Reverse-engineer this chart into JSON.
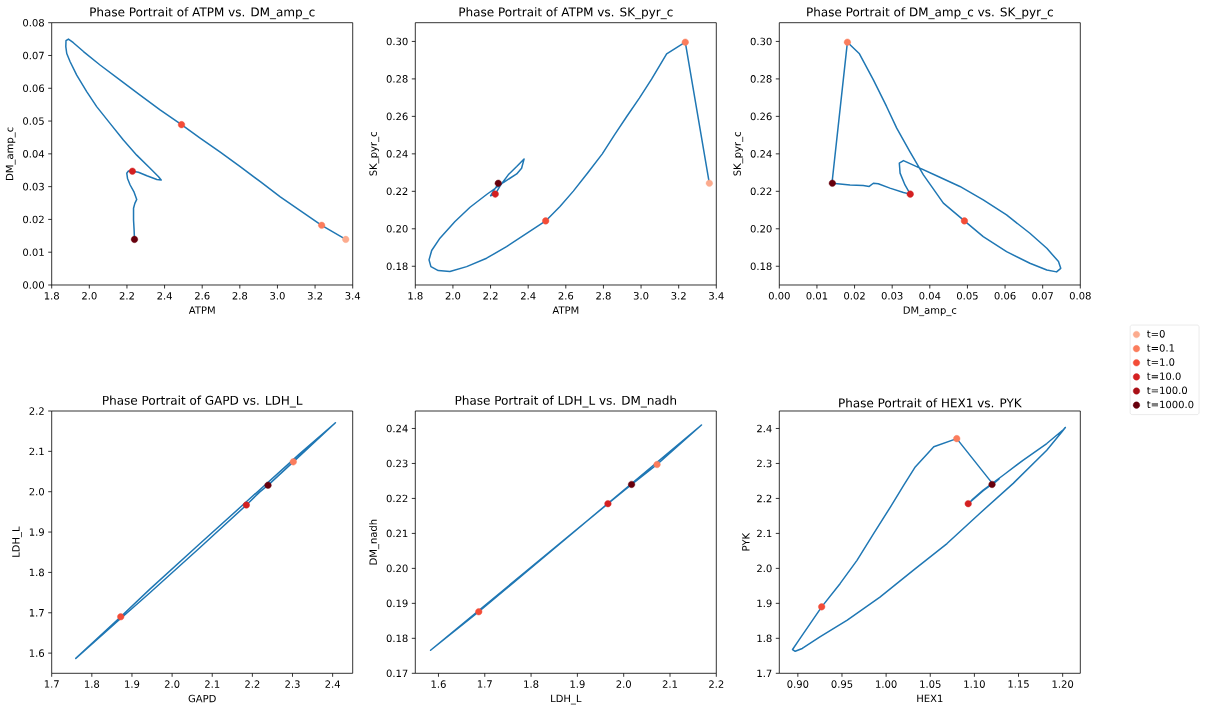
{
  "chart_data": [
    {
      "type": "line",
      "title": "Phase Portrait of ATPM vs. DM_amp_c",
      "xlabel": "ATPM",
      "ylabel": "DM_amp_c",
      "xlim": [
        1.8,
        3.4
      ],
      "ylim": [
        0,
        0.08
      ],
      "xticks": [
        1.8,
        {
          "value": 2,
          "label": "2.0"
        },
        2.2,
        2.4,
        2.6,
        2.8,
        {
          "value": 3,
          "label": "3.0"
        },
        3.2,
        3.4
      ],
      "yticks": [
        {
          "value": 0,
          "label": "0.00"
        },
        0.01,
        0.02,
        0.03,
        0.04,
        0.05,
        0.06,
        0.07,
        0.08
      ],
      "series": [
        {
          "color": "#1f77b4",
          "x": [
            3.363,
            3.235,
            3.121,
            3.015,
            2.909,
            2.802,
            2.696,
            2.589,
            2.49,
            2.376,
            2.27,
            2.164,
            2.057,
            1.969,
            1.915,
            1.889,
            1.876,
            1.875,
            1.88,
            1.898,
            1.933,
            1.986,
            2.039,
            2.11,
            2.181,
            2.252,
            2.323,
            2.368,
            2.382,
            2.359,
            2.306,
            2.261,
            2.229,
            2.208,
            2.199,
            2.203,
            2.217,
            2.238,
            2.252,
            2.242,
            2.235,
            2.235,
            2.238,
            2.24
          ],
          "values": [
            0.0139,
            0.0182,
            0.0227,
            0.0269,
            0.0315,
            0.0361,
            0.0405,
            0.0448,
            0.0489,
            0.0534,
            0.0579,
            0.0625,
            0.0671,
            0.0712,
            0.0739,
            0.075,
            0.0745,
            0.0727,
            0.0706,
            0.0681,
            0.064,
            0.059,
            0.0544,
            0.0493,
            0.0442,
            0.0396,
            0.0356,
            0.033,
            0.032,
            0.0322,
            0.0333,
            0.0344,
            0.0347,
            0.0348,
            0.0341,
            0.0325,
            0.0305,
            0.0283,
            0.0261,
            0.0249,
            0.0234,
            0.0198,
            0.0168,
            0.0139
          ]
        },
        {
          "type": "scatter",
          "marker": "circle",
          "color": "#fcab8e",
          "x": [
            3.363
          ],
          "values": [
            0.0139
          ]
        },
        {
          "type": "scatter",
          "marker": "circle",
          "color": "#fb7d5d",
          "x": [
            3.235
          ],
          "values": [
            0.0182
          ]
        },
        {
          "type": "scatter",
          "marker": "circle",
          "color": "#f34c37",
          "x": [
            2.49
          ],
          "values": [
            0.0489
          ]
        },
        {
          "type": "scatter",
          "marker": "circle",
          "color": "#d42021",
          "x": [
            2.229
          ],
          "values": [
            0.0347
          ]
        },
        {
          "type": "scatter",
          "marker": "circle",
          "color": "#67000d",
          "x": [
            2.24
          ],
          "values": [
            0.0139
          ]
        }
      ]
    },
    {
      "type": "line",
      "title": "Phase Portrait of ATPM vs. SK_pyr_c",
      "xlabel": "ATPM",
      "ylabel": "SK_pyr_c",
      "xlim": [
        1.8,
        3.4
      ],
      "ylim": [
        0.17,
        0.31
      ],
      "xticks": [
        1.8,
        {
          "value": 2,
          "label": "2.0"
        },
        2.2,
        2.4,
        2.6,
        2.8,
        {
          "value": 3,
          "label": "3.0"
        },
        3.2,
        3.4
      ],
      "yticks": [
        0.18,
        {
          "value": 0.2,
          "label": "0.20"
        },
        0.22,
        0.24,
        0.26,
        0.28,
        {
          "value": 0.3,
          "label": "0.30"
        }
      ],
      "series": [
        {
          "color": "#1f77b4",
          "x": [
            3.363,
            3.235,
            3.136,
            3.056,
            2.991,
            2.923,
            2.858,
            2.794,
            2.718,
            2.64,
            2.569,
            2.493,
            2.392,
            2.285,
            2.179,
            2.073,
            1.984,
            1.922,
            1.883,
            1.873,
            1.887,
            1.931,
            2.011,
            2.091,
            2.179,
            2.268,
            2.339,
            2.365,
            2.378,
            2.339,
            2.294,
            2.254,
            2.225,
            2.2,
            2.211,
            2.229,
            2.241
          ],
          "values": [
            0.2243,
            0.2996,
            0.2934,
            0.2799,
            0.2697,
            0.2598,
            0.25,
            0.24,
            0.23,
            0.2201,
            0.2119,
            0.2042,
            0.1976,
            0.1905,
            0.1843,
            0.1798,
            0.1772,
            0.1777,
            0.1798,
            0.1834,
            0.1884,
            0.195,
            0.2039,
            0.2115,
            0.2183,
            0.2247,
            0.2293,
            0.2323,
            0.2372,
            0.2332,
            0.2288,
            0.2234,
            0.2185,
            0.2176,
            0.2194,
            0.2222,
            0.2243
          ]
        },
        {
          "type": "scatter",
          "marker": "circle",
          "color": "#fcab8e",
          "x": [
            3.363
          ],
          "values": [
            0.2243
          ]
        },
        {
          "type": "scatter",
          "marker": "circle",
          "color": "#fb7d5d",
          "x": [
            3.235
          ],
          "values": [
            0.2996
          ]
        },
        {
          "type": "scatter",
          "marker": "circle",
          "color": "#f34c37",
          "x": [
            2.493
          ],
          "values": [
            0.2042
          ]
        },
        {
          "type": "scatter",
          "marker": "circle",
          "color": "#d42021",
          "x": [
            2.225
          ],
          "values": [
            0.2185
          ]
        },
        {
          "type": "scatter",
          "marker": "circle",
          "color": "#67000d",
          "x": [
            2.241
          ],
          "values": [
            0.2243
          ]
        }
      ]
    },
    {
      "type": "line",
      "title": "Phase Portrait of DM_amp_c vs. SK_pyr_c",
      "xlabel": "DM_amp_c",
      "ylabel": "SK_pyr_c",
      "xlim": [
        0,
        0.08
      ],
      "ylim": [
        0.17,
        0.31
      ],
      "legend": "bottom right",
      "xticks": [
        {
          "value": 0,
          "label": "0.00"
        },
        0.01,
        0.02,
        0.03,
        0.04,
        0.05,
        0.06,
        0.07,
        0.08
      ],
      "yticks": [
        0.18,
        {
          "value": 0.2,
          "label": "0.20"
        },
        0.22,
        0.24,
        0.26,
        0.28,
        {
          "value": 0.3,
          "label": "0.30"
        }
      ],
      "series": [
        {
          "color": "#1f77b4",
          "x": [
            0.014,
            0.0181,
            0.0213,
            0.025,
            0.0285,
            0.0312,
            0.0347,
            0.0383,
            0.0436,
            0.0492,
            0.0542,
            0.0604,
            0.0666,
            0.0711,
            0.0737,
            0.0748,
            0.0742,
            0.0711,
            0.0666,
            0.0604,
            0.0542,
            0.048,
            0.0418,
            0.0365,
            0.033,
            0.0319,
            0.0321,
            0.0334,
            0.0348,
            0.033,
            0.0294,
            0.0263,
            0.025,
            0.0239,
            0.0223,
            0.0188,
            0.0141
          ],
          "values": [
            0.2244,
            0.2996,
            0.2934,
            0.2795,
            0.2653,
            0.2537,
            0.2412,
            0.2288,
            0.2137,
            0.2042,
            0.1958,
            0.1878,
            0.1816,
            0.178,
            0.177,
            0.1789,
            0.1825,
            0.1896,
            0.1976,
            0.2074,
            0.2154,
            0.2226,
            0.2283,
            0.2332,
            0.2364,
            0.235,
            0.2297,
            0.2234,
            0.2185,
            0.2194,
            0.2217,
            0.224,
            0.2243,
            0.2226,
            0.2231,
            0.2234,
            0.2243
          ]
        },
        {
          "type": "scatter",
          "marker": "circle",
          "name": "t=0",
          "color": "#fcab8e",
          "x": [
            null
          ],
          "values": [
            null
          ]
        },
        {
          "type": "scatter",
          "marker": "circle",
          "name": "t=0.1",
          "color": "#fb7d5d",
          "x": [
            0.0181
          ],
          "values": [
            0.2996
          ]
        },
        {
          "type": "scatter",
          "marker": "circle",
          "name": "t=1.0",
          "color": "#f34c37",
          "x": [
            0.0492
          ],
          "values": [
            0.2042
          ]
        },
        {
          "type": "scatter",
          "marker": "circle",
          "name": "t=10.0",
          "color": "#d42021",
          "x": [
            0.0348
          ],
          "values": [
            0.2185
          ]
        },
        {
          "type": "scatter",
          "marker": "circle",
          "name": "t=100.0",
          "color": "#aa1016",
          "x": [
            null
          ],
          "values": [
            null
          ]
        },
        {
          "type": "scatter",
          "marker": "circle",
          "name": "t=1000.0",
          "color": "#67000d",
          "x": [
            0.0141
          ],
          "values": [
            0.2243
          ]
        }
      ]
    },
    {
      "type": "line",
      "title": "Phase Portrait of GAPD vs. LDH_L",
      "xlabel": "GAPD",
      "ylabel": "LDH_L",
      "xlim": [
        1.7,
        2.45
      ],
      "ylim": [
        1.55,
        2.2
      ],
      "xticks": [
        1.7,
        1.8,
        1.9,
        {
          "value": 2,
          "label": "2.0"
        },
        2.1,
        2.2,
        2.3,
        2.4
      ],
      "yticks": [
        1.6,
        1.7,
        1.8,
        1.9,
        {
          "value": 2,
          "label": "2.0"
        },
        2.1,
        2.2
      ],
      "series": [
        {
          "color": "#1f77b4",
          "x": [
            2.24,
            2.302,
            2.407,
            2.317,
            2.185,
            2.069,
            1.944,
            1.872,
            1.76,
            1.862,
            1.944,
            2.069,
            2.185,
            2.218,
            2.239
          ],
          "values": [
            2.017,
            2.074,
            2.171,
            2.093,
            1.975,
            1.871,
            1.758,
            1.69,
            1.587,
            1.677,
            1.749,
            1.861,
            1.967,
            1.999,
            2.016
          ]
        },
        {
          "type": "scatter",
          "marker": "circle",
          "color": "#fb7d5d",
          "x": [
            2.302
          ],
          "values": [
            2.074
          ]
        },
        {
          "type": "scatter",
          "marker": "circle",
          "color": "#f34c37",
          "x": [
            1.872
          ],
          "values": [
            1.69
          ]
        },
        {
          "type": "scatter",
          "marker": "circle",
          "color": "#d42021",
          "x": [
            2.185
          ],
          "values": [
            1.967
          ]
        },
        {
          "type": "scatter",
          "marker": "circle",
          "color": "#67000d",
          "x": [
            2.239
          ],
          "values": [
            2.016
          ]
        }
      ]
    },
    {
      "type": "line",
      "title": "Phase Portrait of LDH_L vs. DM_nadh",
      "xlabel": "LDH_L",
      "ylabel": "DM_nadh",
      "xlim": [
        1.55,
        2.2
      ],
      "ylim": [
        0.17,
        0.245
      ],
      "xticks": [
        1.6,
        1.7,
        1.8,
        1.9,
        {
          "value": 2,
          "label": "2.0"
        },
        2.1,
        2.2
      ],
      "yticks": [
        0.17,
        0.18,
        0.19,
        {
          "value": 0.2,
          "label": "0.20"
        },
        0.21,
        0.22,
        0.23,
        0.24
      ],
      "series": [
        {
          "color": "#1f77b4",
          "x": [
            2.018,
            2.072,
            2.168,
            1.687,
            1.583,
            1.966,
            2.017
          ],
          "values": [
            0.2241,
            0.2297,
            0.241,
            0.1876,
            0.1766,
            0.2185,
            0.224
          ]
        },
        {
          "type": "scatter",
          "marker": "circle",
          "color": "#fb7d5d",
          "x": [
            2.072
          ],
          "values": [
            0.2297
          ]
        },
        {
          "type": "scatter",
          "marker": "circle",
          "color": "#f34c37",
          "x": [
            1.687
          ],
          "values": [
            0.1876
          ]
        },
        {
          "type": "scatter",
          "marker": "circle",
          "color": "#d42021",
          "x": [
            1.966
          ],
          "values": [
            0.2185
          ]
        },
        {
          "type": "scatter",
          "marker": "circle",
          "color": "#67000d",
          "x": [
            2.017
          ],
          "values": [
            0.224
          ]
        }
      ]
    },
    {
      "type": "line",
      "title": "Phase Portrait of HEX1 vs. PYK",
      "xlabel": "HEX1",
      "ylabel": "PYK",
      "xlim": [
        0.879,
        1.22
      ],
      "ylim": [
        1.7,
        2.45
      ],
      "xticks": [
        {
          "value": 0.9,
          "label": "0.90"
        },
        0.95,
        {
          "value": 1,
          "label": "1.00"
        },
        1.05,
        {
          "value": 1.1,
          "label": "1.10"
        },
        1.15,
        {
          "value": 1.2,
          "label": "1.20"
        }
      ],
      "yticks": [
        1.7,
        1.8,
        1.9,
        {
          "value": 2,
          "label": "2.0"
        },
        2.1,
        2.2,
        2.3,
        2.4
      ],
      "series": [
        {
          "color": "#1f77b4",
          "x": [
            1.121,
            1.08,
            1.054,
            1.033,
            1.02,
            1.005,
            0.986,
            0.967,
            0.948,
            0.927,
            0.914,
            0.901,
            0.894,
            0.897,
            0.905,
            0.925,
            0.956,
            0.993,
            1.031,
            1.069,
            1.106,
            1.144,
            1.182,
            1.199,
            1.203,
            1.201,
            1.182,
            1.155,
            1.133,
            1.11,
            1.097,
            1.093,
            1.11,
            1.128,
            1.123,
            1.12
          ],
          "values": [
            2.241,
            2.371,
            2.348,
            2.29,
            2.238,
            2.176,
            2.1,
            2.023,
            1.957,
            1.89,
            1.842,
            1.794,
            1.768,
            1.763,
            1.771,
            1.804,
            1.852,
            1.918,
            1.995,
            2.071,
            2.157,
            2.243,
            2.338,
            2.39,
            2.403,
            2.397,
            2.357,
            2.309,
            2.267,
            2.224,
            2.195,
            2.185,
            2.222,
            2.256,
            2.245,
            2.24
          ]
        },
        {
          "type": "scatter",
          "marker": "circle",
          "color": "#fb7d5d",
          "x": [
            1.08
          ],
          "values": [
            2.371
          ]
        },
        {
          "type": "scatter",
          "marker": "circle",
          "color": "#f34c37",
          "x": [
            0.927
          ],
          "values": [
            1.89
          ]
        },
        {
          "type": "scatter",
          "marker": "circle",
          "color": "#d42021",
          "x": [
            1.093
          ],
          "values": [
            2.185
          ]
        },
        {
          "type": "scatter",
          "marker": "circle",
          "color": "#67000d",
          "x": [
            1.12
          ],
          "values": [
            2.24
          ]
        }
      ]
    }
  ]
}
